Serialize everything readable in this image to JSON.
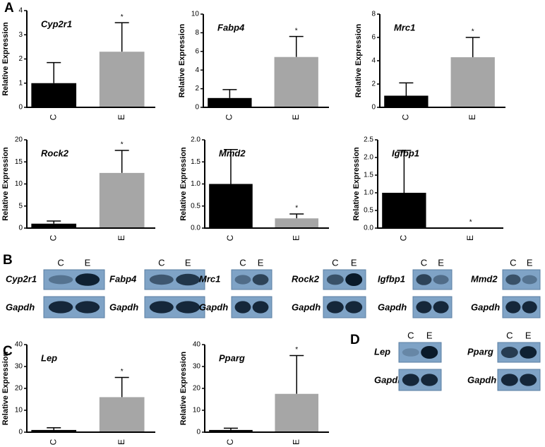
{
  "panels": [
    "A",
    "B",
    "C",
    "D"
  ],
  "chart_data": [
    {
      "type": "bar",
      "title": "Cyp2r1",
      "ylabel": "Relative Expression",
      "categories": [
        "C",
        "E"
      ],
      "values": [
        1,
        2.3
      ],
      "errors": [
        0.85,
        1.2
      ],
      "significance": [
        null,
        "*"
      ],
      "colors": [
        "#000000",
        "#a6a6a6"
      ],
      "ylim": [
        0,
        4
      ],
      "yticks": [
        0,
        1,
        2,
        3,
        4
      ]
    },
    {
      "type": "bar",
      "title": "Fabp4",
      "ylabel": "Relative Expression",
      "categories": [
        "C",
        "E"
      ],
      "values": [
        1,
        5.4
      ],
      "errors": [
        0.9,
        2.2
      ],
      "significance": [
        null,
        "*"
      ],
      "colors": [
        "#000000",
        "#a6a6a6"
      ],
      "ylim": [
        0,
        10
      ],
      "yticks": [
        0,
        2,
        4,
        6,
        8,
        10
      ]
    },
    {
      "type": "bar",
      "title": "Mrc1",
      "ylabel": "Relative Expression",
      "categories": [
        "C",
        "E"
      ],
      "values": [
        1,
        4.3
      ],
      "errors": [
        1.1,
        1.7
      ],
      "significance": [
        null,
        "*"
      ],
      "colors": [
        "#000000",
        "#a6a6a6"
      ],
      "ylim": [
        0,
        8
      ],
      "yticks": [
        0,
        2,
        4,
        6,
        8
      ]
    },
    {
      "type": "bar",
      "title": "Rock2",
      "ylabel": "Relative Expression",
      "categories": [
        "C",
        "E"
      ],
      "values": [
        1,
        12.5
      ],
      "errors": [
        0.6,
        5.1
      ],
      "significance": [
        null,
        "*"
      ],
      "colors": [
        "#000000",
        "#a6a6a6"
      ],
      "ylim": [
        0,
        20
      ],
      "yticks": [
        0,
        5,
        10,
        15,
        20
      ]
    },
    {
      "type": "bar",
      "title": "Mmd2",
      "ylabel": "Relative Expression",
      "categories": [
        "C",
        "E"
      ],
      "values": [
        1,
        0.22
      ],
      "errors": [
        0.78,
        0.1
      ],
      "significance": [
        null,
        "*"
      ],
      "colors": [
        "#000000",
        "#a6a6a6"
      ],
      "ylim": [
        0,
        2
      ],
      "yticks": [
        {
          "value": 0,
          "label": "0.0"
        },
        0.5,
        {
          "value": 1,
          "label": "1.0"
        },
        1.5,
        {
          "value": 2,
          "label": "2.0"
        }
      ]
    },
    {
      "type": "bar",
      "title": "Igfbp1",
      "ylabel": "Relative Expression",
      "categories": [
        "C",
        "E"
      ],
      "values": [
        1,
        0
      ],
      "errors": [
        1.2,
        0
      ],
      "significance": [
        null,
        "*"
      ],
      "colors": [
        "#000000",
        "#a6a6a6"
      ],
      "ylim": [
        0,
        2.5
      ],
      "yticks": [
        {
          "value": 0,
          "label": "0.0"
        },
        0.5,
        {
          "value": 1,
          "label": "1.0"
        },
        1.5,
        {
          "value": 2,
          "label": "2.0"
        },
        2.5
      ]
    },
    {
      "type": "bar",
      "title": "Lep",
      "ylabel": "Relative Expression",
      "categories": [
        "C",
        "E"
      ],
      "values": [
        1,
        16
      ],
      "errors": [
        1,
        9
      ],
      "significance": [
        null,
        "*"
      ],
      "colors": [
        "#000000",
        "#a6a6a6"
      ],
      "ylim": [
        0,
        40
      ],
      "yticks": [
        0,
        10,
        20,
        30,
        40
      ]
    },
    {
      "type": "bar",
      "title": "Pparg",
      "ylabel": "Relative Expression",
      "categories": [
        "C",
        "E"
      ],
      "values": [
        1,
        17.5
      ],
      "errors": [
        0.8,
        17.5
      ],
      "significance": [
        null,
        "*"
      ],
      "colors": [
        "#000000",
        "#a6a6a6"
      ],
      "ylim": [
        0,
        40
      ],
      "yticks": [
        0,
        10,
        20,
        30,
        40
      ]
    }
  ],
  "blots": [
    {
      "gene": "Cyp2r1",
      "reference": "Gapdh",
      "lanes": [
        "C",
        "E"
      ]
    },
    {
      "gene": "Fabp4",
      "reference": "Gapdh",
      "lanes": [
        "C",
        "E"
      ]
    },
    {
      "gene": "Mrc1",
      "reference": "Gapdh",
      "lanes": [
        "C",
        "E"
      ]
    },
    {
      "gene": "Rock2",
      "reference": "Gapdh",
      "lanes": [
        "C",
        "E"
      ]
    },
    {
      "gene": "Igfbp1",
      "reference": "Gapdh",
      "lanes": [
        "C",
        "E"
      ]
    },
    {
      "gene": "Mmd2",
      "reference": "Gapdh",
      "lanes": [
        "C",
        "E"
      ]
    },
    {
      "gene": "Lep",
      "reference": "Gapdh",
      "lanes": [
        "C",
        "E"
      ]
    },
    {
      "gene": "Pparg",
      "reference": "Gapdh",
      "lanes": [
        "C",
        "E"
      ]
    }
  ]
}
